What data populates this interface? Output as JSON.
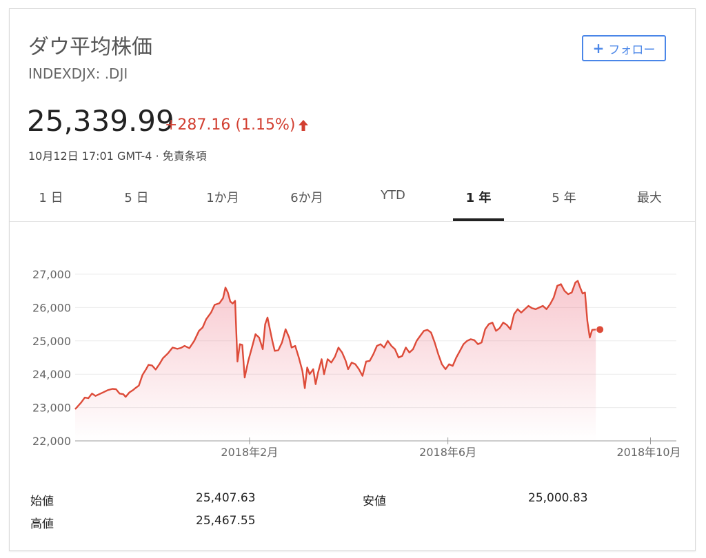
{
  "header": {
    "title": "ダウ平均株価",
    "ticker": "INDEXDJX: .DJI",
    "follow_label": "フォロー",
    "price": "25,339.99",
    "change": "+287.16 (1.15%)",
    "timestamp": "10月12日 17:01 GMT-4",
    "separator": "·",
    "disclaimer": "免責条項",
    "accent_color": "#d23f31",
    "follow_color": "#4a86e8",
    "icons": {
      "follow": "plus-icon",
      "change": "up-arrow-icon"
    }
  },
  "tabs": [
    {
      "label": "1 日"
    },
    {
      "label": "5 日"
    },
    {
      "label": "1か月"
    },
    {
      "label": "6か月"
    },
    {
      "label": "YTD"
    },
    {
      "label": "1 年",
      "active": true
    },
    {
      "label": "5 年"
    },
    {
      "label": "最大"
    }
  ],
  "chart_data": {
    "type": "area",
    "ylim": [
      22000,
      27000
    ],
    "yticks": [
      {
        "value": 27000,
        "label": "27,000"
      },
      {
        "value": 26000,
        "label": "26,000"
      },
      {
        "value": 25000,
        "label": "25,000"
      },
      {
        "value": 24000,
        "label": "24,000"
      },
      {
        "value": 23000,
        "label": "23,000"
      },
      {
        "value": 22000,
        "label": "22,000"
      }
    ],
    "xticks": [
      {
        "t": 0.29,
        "label": "2018年2月"
      },
      {
        "t": 0.62,
        "label": "2018年6月"
      },
      {
        "t": 0.957,
        "label": "2018年10月"
      }
    ],
    "line_color": "#dd4b39",
    "grid": true,
    "series": [
      {
        "values": [
          [
            0.0,
            22950
          ],
          [
            0.01,
            23150
          ],
          [
            0.016,
            23300
          ],
          [
            0.022,
            23280
          ],
          [
            0.028,
            23420
          ],
          [
            0.034,
            23350
          ],
          [
            0.04,
            23400
          ],
          [
            0.046,
            23450
          ],
          [
            0.054,
            23520
          ],
          [
            0.062,
            23560
          ],
          [
            0.068,
            23550
          ],
          [
            0.074,
            23420
          ],
          [
            0.08,
            23400
          ],
          [
            0.084,
            23320
          ],
          [
            0.09,
            23450
          ],
          [
            0.096,
            23520
          ],
          [
            0.1,
            23580
          ],
          [
            0.106,
            23660
          ],
          [
            0.112,
            23980
          ],
          [
            0.118,
            24150
          ],
          [
            0.122,
            24280
          ],
          [
            0.128,
            24260
          ],
          [
            0.134,
            24140
          ],
          [
            0.14,
            24300
          ],
          [
            0.146,
            24480
          ],
          [
            0.154,
            24620
          ],
          [
            0.162,
            24800
          ],
          [
            0.17,
            24760
          ],
          [
            0.176,
            24790
          ],
          [
            0.182,
            24850
          ],
          [
            0.19,
            24780
          ],
          [
            0.198,
            25000
          ],
          [
            0.206,
            25300
          ],
          [
            0.212,
            25400
          ],
          [
            0.218,
            25650
          ],
          [
            0.226,
            25850
          ],
          [
            0.232,
            26080
          ],
          [
            0.24,
            26130
          ],
          [
            0.246,
            26280
          ],
          [
            0.25,
            26600
          ],
          [
            0.254,
            26450
          ],
          [
            0.258,
            26180
          ],
          [
            0.262,
            26120
          ],
          [
            0.266,
            26200
          ],
          [
            0.27,
            24380
          ],
          [
            0.274,
            24900
          ],
          [
            0.278,
            24880
          ],
          [
            0.282,
            23900
          ],
          [
            0.288,
            24400
          ],
          [
            0.294,
            24800
          ],
          [
            0.3,
            25200
          ],
          [
            0.306,
            25100
          ],
          [
            0.312,
            24750
          ],
          [
            0.316,
            25500
          ],
          [
            0.32,
            25700
          ],
          [
            0.324,
            25350
          ],
          [
            0.328,
            25000
          ],
          [
            0.332,
            24700
          ],
          [
            0.338,
            24720
          ],
          [
            0.344,
            24950
          ],
          [
            0.35,
            25350
          ],
          [
            0.356,
            25100
          ],
          [
            0.36,
            24800
          ],
          [
            0.366,
            24850
          ],
          [
            0.372,
            24500
          ],
          [
            0.378,
            24100
          ],
          [
            0.382,
            23580
          ],
          [
            0.386,
            24200
          ],
          [
            0.39,
            24000
          ],
          [
            0.396,
            24150
          ],
          [
            0.4,
            23700
          ],
          [
            0.404,
            24050
          ],
          [
            0.41,
            24450
          ],
          [
            0.414,
            24000
          ],
          [
            0.42,
            24450
          ],
          [
            0.426,
            24350
          ],
          [
            0.432,
            24520
          ],
          [
            0.438,
            24800
          ],
          [
            0.444,
            24650
          ],
          [
            0.45,
            24400
          ],
          [
            0.454,
            24150
          ],
          [
            0.46,
            24350
          ],
          [
            0.466,
            24300
          ],
          [
            0.472,
            24150
          ],
          [
            0.478,
            23950
          ],
          [
            0.484,
            24380
          ],
          [
            0.49,
            24400
          ],
          [
            0.496,
            24600
          ],
          [
            0.502,
            24850
          ],
          [
            0.508,
            24900
          ],
          [
            0.514,
            24800
          ],
          [
            0.52,
            25000
          ],
          [
            0.526,
            24850
          ],
          [
            0.532,
            24750
          ],
          [
            0.538,
            24500
          ],
          [
            0.544,
            24550
          ],
          [
            0.55,
            24800
          ],
          [
            0.556,
            24650
          ],
          [
            0.562,
            24750
          ],
          [
            0.568,
            25000
          ],
          [
            0.574,
            25150
          ],
          [
            0.58,
            25300
          ],
          [
            0.586,
            25330
          ],
          [
            0.592,
            25250
          ],
          [
            0.598,
            24950
          ],
          [
            0.604,
            24600
          ],
          [
            0.61,
            24300
          ],
          [
            0.616,
            24150
          ],
          [
            0.622,
            24300
          ],
          [
            0.628,
            24250
          ],
          [
            0.634,
            24500
          ],
          [
            0.64,
            24700
          ],
          [
            0.646,
            24900
          ],
          [
            0.652,
            25000
          ],
          [
            0.658,
            25050
          ],
          [
            0.664,
            25020
          ],
          [
            0.67,
            24900
          ],
          [
            0.676,
            24950
          ],
          [
            0.682,
            25350
          ],
          [
            0.688,
            25500
          ],
          [
            0.694,
            25550
          ],
          [
            0.7,
            25300
          ],
          [
            0.706,
            25380
          ],
          [
            0.712,
            25550
          ],
          [
            0.718,
            25480
          ],
          [
            0.724,
            25350
          ],
          [
            0.73,
            25800
          ],
          [
            0.736,
            25950
          ],
          [
            0.742,
            25850
          ],
          [
            0.748,
            25950
          ],
          [
            0.754,
            26050
          ],
          [
            0.76,
            25980
          ],
          [
            0.766,
            25950
          ],
          [
            0.772,
            26000
          ],
          [
            0.778,
            26050
          ],
          [
            0.784,
            25950
          ],
          [
            0.79,
            26100
          ],
          [
            0.796,
            26300
          ],
          [
            0.802,
            26650
          ],
          [
            0.808,
            26700
          ],
          [
            0.814,
            26500
          ],
          [
            0.82,
            26400
          ],
          [
            0.826,
            26450
          ],
          [
            0.832,
            26750
          ],
          [
            0.836,
            26800
          ],
          [
            0.84,
            26600
          ],
          [
            0.844,
            26420
          ],
          [
            0.848,
            26450
          ],
          [
            0.852,
            25600
          ],
          [
            0.856,
            25100
          ],
          [
            0.86,
            25330
          ],
          [
            0.866,
            25340
          ]
        ]
      }
    ]
  },
  "stats": {
    "rows": [
      {
        "label": "始値",
        "value": "25,407.63"
      },
      {
        "label": "高値",
        "value": "25,467.55"
      }
    ],
    "right": {
      "label": "安値",
      "value": "25,000.83"
    }
  }
}
